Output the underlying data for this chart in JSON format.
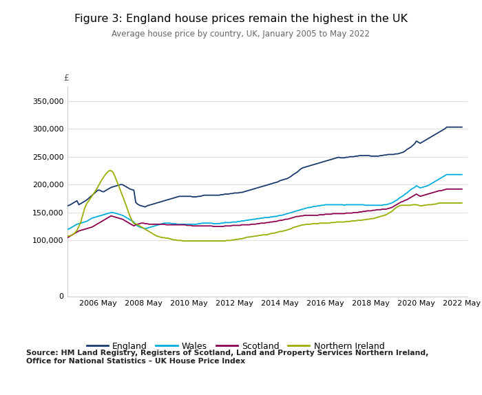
{
  "title": "Figure 3: England house prices remain the highest in the UK",
  "subtitle": "Average house price by country, UK, January 2005 to May 2022",
  "source": "Source: HM Land Registry, Registers of Scotland, Land and Property Services Northern Ireland,\nOffice for National Statistics – UK House Price Index",
  "ylabel": "£",
  "ylim": [
    0,
    375000
  ],
  "yticks": [
    0,
    100000,
    150000,
    200000,
    250000,
    300000,
    350000
  ],
  "ytick_labels": [
    "0",
    "100,000",
    "150,000",
    "200,000",
    "250,000",
    "300,000",
    "350,000"
  ],
  "xtick_labels": [
    "2006 May",
    "2008 May",
    "2010 May",
    "2012 May",
    "2014 May",
    "2016 May",
    "2018 May",
    "2020 May",
    "2022 May"
  ],
  "colors": {
    "England": "#1a3a6b",
    "Wales": "#00aedb",
    "Scotland": "#8b0050",
    "Northern Ireland": "#9aad00"
  },
  "background_color": "#ffffff",
  "england": [
    162000,
    163000,
    165000,
    167000,
    169000,
    171000,
    164000,
    166000,
    168000,
    170000,
    172000,
    175000,
    178000,
    181000,
    184000,
    187000,
    190000,
    190000,
    188000,
    187000,
    189000,
    191000,
    193000,
    195000,
    196000,
    197000,
    198000,
    199000,
    200000,
    200000,
    198000,
    196000,
    194000,
    192000,
    191000,
    190000,
    168000,
    165000,
    163000,
    162000,
    161000,
    160000,
    162000,
    163000,
    164000,
    165000,
    166000,
    167000,
    168000,
    169000,
    170000,
    171000,
    172000,
    173000,
    174000,
    175000,
    176000,
    177000,
    178000,
    179000,
    179000,
    179000,
    179000,
    179000,
    179000,
    179000,
    178000,
    178000,
    178000,
    179000,
    179000,
    180000,
    181000,
    181000,
    181000,
    181000,
    181000,
    181000,
    181000,
    181000,
    181000,
    182000,
    182000,
    183000,
    183000,
    183000,
    184000,
    184000,
    185000,
    185000,
    185000,
    186000,
    186000,
    187000,
    188000,
    189000,
    190000,
    191000,
    192000,
    193000,
    194000,
    195000,
    196000,
    197000,
    198000,
    199000,
    200000,
    201000,
    202000,
    203000,
    204000,
    205000,
    207000,
    208000,
    209000,
    210000,
    211000,
    213000,
    215000,
    218000,
    220000,
    222000,
    225000,
    228000,
    230000,
    231000,
    232000,
    233000,
    234000,
    235000,
    236000,
    237000,
    238000,
    239000,
    240000,
    241000,
    242000,
    243000,
    244000,
    245000,
    246000,
    247000,
    248000,
    249000,
    248000,
    248000,
    248000,
    249000,
    249000,
    250000,
    250000,
    250000,
    251000,
    251000,
    252000,
    252000,
    252000,
    252000,
    252000,
    252000,
    251000,
    251000,
    251000,
    251000,
    251000,
    252000,
    252000,
    253000,
    253000,
    254000,
    254000,
    254000,
    254000,
    255000,
    255000,
    256000,
    257000,
    258000,
    260000,
    263000,
    265000,
    267000,
    270000,
    273000,
    278000,
    276000,
    274000,
    276000,
    278000,
    280000,
    282000,
    284000,
    286000,
    288000,
    290000,
    292000,
    294000,
    296000,
    298000,
    300000,
    303000
  ],
  "wales": [
    120000,
    121000,
    123000,
    125000,
    127000,
    129000,
    130000,
    131000,
    132000,
    133000,
    134000,
    136000,
    138000,
    140000,
    141000,
    142000,
    143000,
    144000,
    145000,
    146000,
    147000,
    148000,
    149000,
    150000,
    150000,
    149000,
    148000,
    147000,
    146000,
    145000,
    143000,
    141000,
    139000,
    137000,
    135000,
    133000,
    128000,
    126000,
    124000,
    123000,
    122000,
    121000,
    122000,
    123000,
    124000,
    125000,
    126000,
    127000,
    128000,
    129000,
    130000,
    131000,
    131000,
    131000,
    131000,
    130000,
    130000,
    130000,
    129000,
    129000,
    129000,
    129000,
    129000,
    129000,
    129000,
    129000,
    129000,
    129000,
    129000,
    130000,
    130000,
    131000,
    131000,
    131000,
    131000,
    131000,
    131000,
    130000,
    130000,
    130000,
    130000,
    131000,
    131000,
    132000,
    132000,
    132000,
    132000,
    133000,
    133000,
    133000,
    134000,
    134000,
    135000,
    135000,
    136000,
    136000,
    137000,
    137000,
    138000,
    138000,
    139000,
    139000,
    140000,
    140000,
    141000,
    141000,
    141000,
    142000,
    142000,
    143000,
    143000,
    144000,
    145000,
    145000,
    146000,
    147000,
    148000,
    149000,
    150000,
    151000,
    152000,
    153000,
    154000,
    155000,
    156000,
    157000,
    158000,
    159000,
    159000,
    160000,
    161000,
    161000,
    162000,
    162000,
    163000,
    163000,
    164000,
    164000,
    164000,
    164000,
    164000,
    164000,
    164000,
    164000,
    164000,
    164000,
    163000,
    164000,
    164000,
    164000,
    164000,
    164000,
    164000,
    164000,
    164000,
    164000,
    164000,
    163000,
    163000,
    163000,
    163000,
    163000,
    163000,
    163000,
    163000,
    163000,
    163000,
    164000,
    164000,
    165000,
    166000,
    167000,
    169000,
    171000,
    173000,
    176000,
    178000,
    180000,
    183000,
    185000,
    188000,
    191000,
    193000,
    195000,
    198000,
    196000,
    194000,
    195000,
    196000,
    197000,
    198000,
    200000,
    202000,
    204000,
    206000,
    208000,
    210000,
    212000,
    214000,
    216000,
    218000
  ],
  "scotland": [
    105000,
    107000,
    109000,
    111000,
    113000,
    115000,
    117000,
    118000,
    119000,
    120000,
    121000,
    122000,
    123000,
    124000,
    126000,
    128000,
    130000,
    132000,
    134000,
    136000,
    138000,
    140000,
    142000,
    144000,
    143000,
    142000,
    141000,
    140000,
    139000,
    138000,
    136000,
    134000,
    132000,
    130000,
    128000,
    126000,
    128000,
    129000,
    130000,
    131000,
    131000,
    130000,
    130000,
    129000,
    129000,
    129000,
    129000,
    129000,
    129000,
    129000,
    129000,
    129000,
    128000,
    128000,
    128000,
    128000,
    128000,
    128000,
    128000,
    128000,
    128000,
    128000,
    128000,
    127000,
    127000,
    127000,
    126000,
    126000,
    126000,
    126000,
    126000,
    126000,
    126000,
    126000,
    126000,
    126000,
    126000,
    125000,
    125000,
    125000,
    125000,
    125000,
    125000,
    126000,
    126000,
    126000,
    126000,
    127000,
    127000,
    127000,
    127000,
    127000,
    128000,
    128000,
    128000,
    128000,
    128000,
    129000,
    129000,
    129000,
    130000,
    130000,
    131000,
    131000,
    131000,
    132000,
    132000,
    133000,
    133000,
    134000,
    134000,
    135000,
    136000,
    136000,
    137000,
    138000,
    138000,
    139000,
    140000,
    141000,
    142000,
    143000,
    143000,
    144000,
    144000,
    145000,
    145000,
    145000,
    145000,
    145000,
    145000,
    145000,
    145000,
    146000,
    146000,
    146000,
    147000,
    147000,
    147000,
    147000,
    148000,
    148000,
    148000,
    148000,
    148000,
    148000,
    148000,
    149000,
    149000,
    149000,
    149000,
    150000,
    150000,
    150000,
    151000,
    151000,
    152000,
    152000,
    153000,
    153000,
    153000,
    154000,
    154000,
    155000,
    155000,
    155000,
    156000,
    156000,
    156000,
    157000,
    158000,
    159000,
    161000,
    163000,
    165000,
    167000,
    169000,
    170000,
    172000,
    173000,
    175000,
    177000,
    179000,
    181000,
    183000,
    181000,
    179000,
    180000,
    181000,
    182000,
    183000,
    184000,
    185000,
    186000,
    187000,
    188000,
    189000,
    189000,
    190000,
    191000,
    192000
  ],
  "northern_ireland": [
    108000,
    108000,
    109000,
    111000,
    114000,
    118000,
    125000,
    133000,
    145000,
    157000,
    165000,
    170000,
    175000,
    180000,
    185000,
    190000,
    196000,
    202000,
    208000,
    213000,
    218000,
    222000,
    225000,
    225000,
    222000,
    215000,
    206000,
    198000,
    189000,
    180000,
    171000,
    162000,
    152000,
    143000,
    136000,
    130000,
    130000,
    128000,
    126000,
    124000,
    122000,
    120000,
    118000,
    116000,
    114000,
    112000,
    110000,
    108000,
    107000,
    106000,
    105000,
    105000,
    104000,
    104000,
    103000,
    102000,
    101000,
    101000,
    100000,
    100000,
    100000,
    99000,
    99000,
    99000,
    99000,
    99000,
    99000,
    99000,
    99000,
    99000,
    99000,
    99000,
    99000,
    99000,
    99000,
    99000,
    99000,
    99000,
    99000,
    99000,
    99000,
    99000,
    99000,
    99000,
    100000,
    100000,
    100000,
    101000,
    101000,
    102000,
    102000,
    103000,
    103000,
    104000,
    105000,
    106000,
    106000,
    107000,
    107000,
    108000,
    108000,
    109000,
    109000,
    110000,
    110000,
    110000,
    111000,
    112000,
    113000,
    113000,
    114000,
    115000,
    116000,
    116000,
    117000,
    118000,
    119000,
    120000,
    121000,
    123000,
    124000,
    125000,
    126000,
    127000,
    128000,
    128000,
    129000,
    129000,
    129000,
    130000,
    130000,
    130000,
    130000,
    131000,
    131000,
    131000,
    131000,
    131000,
    131000,
    132000,
    132000,
    132000,
    133000,
    133000,
    133000,
    133000,
    133000,
    134000,
    134000,
    134000,
    135000,
    135000,
    135000,
    136000,
    136000,
    136000,
    137000,
    137000,
    138000,
    138000,
    139000,
    139000,
    140000,
    141000,
    142000,
    143000,
    144000,
    145000,
    146000,
    148000,
    150000,
    152000,
    155000,
    158000,
    160000,
    162000,
    163000,
    163000,
    163000,
    163000,
    163000,
    163000,
    164000,
    164000,
    164000,
    163000,
    162000,
    162000,
    163000,
    163000,
    164000,
    164000,
    164000,
    165000,
    165000,
    166000,
    167000
  ]
}
